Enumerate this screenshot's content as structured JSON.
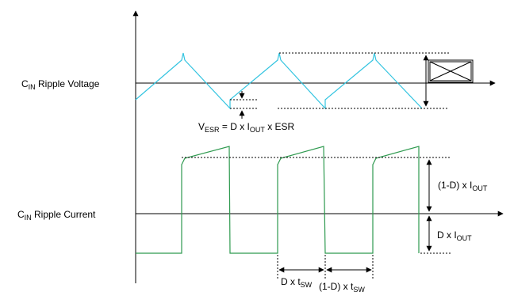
{
  "labels": {
    "voltage_label": {
      "main": "C",
      "sub": "IN",
      "rest": " Ripple Voltage"
    },
    "current_label": {
      "main": "C",
      "sub": "IN",
      "rest": " Ripple Current"
    },
    "vesr_formula": {
      "p1": "V",
      "s1": "ESR",
      "p2": " = D x I",
      "s2": "OUT",
      "p3": " x ESR"
    },
    "top_current": {
      "p1": "(1-D) x I",
      "s1": "OUT"
    },
    "bottom_current": {
      "p1": "D x I",
      "s1": "OUT"
    },
    "d_tsw": {
      "p1": "D x t",
      "s1": "SW"
    },
    "one_minus_d_tsw": {
      "p1": "(1-D) x t",
      "s1": "SW"
    }
  },
  "colors": {
    "voltage_wave": "#33c4e0",
    "current_wave": "#2e9a4f",
    "axis": "#000000"
  }
}
